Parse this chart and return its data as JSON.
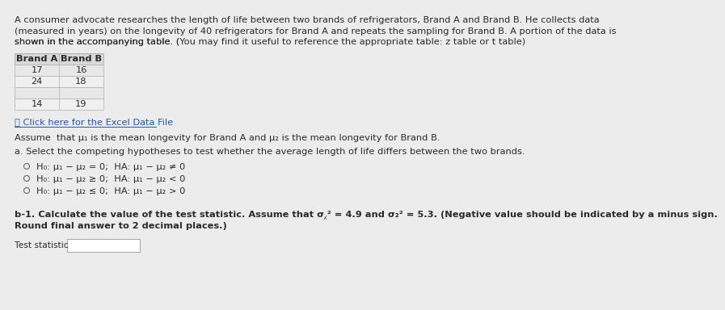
{
  "page_bg": "#ececec",
  "content_bg": "#ececec",
  "title_line1": "A consumer advocate researches the length of life between two brands of refrigerators, Brand A and Brand B. He collects data",
  "title_line2": "(measured in years) on the longevity of 40 refrigerators for Brand A and repeats the sampling for Brand B. A portion of the data is",
  "title_line3": "shown in the accompanying table. (You may find it useful to reference the appropriate table: z table or t table)",
  "title_line3_plain": "shown in the accompanying table. (",
  "title_line3_bold": "You may find it useful to reference the appropriate table: ",
  "title_line3_link1": "z table",
  "title_line3_mid": " or ",
  "title_line3_link2": "t table",
  "title_line3_end": ")",
  "table_headers": [
    "Brand A",
    "Brand B"
  ],
  "table_rows": [
    [
      "17",
      "16"
    ],
    [
      "24",
      "18"
    ],
    [
      "",
      ""
    ],
    [
      "14",
      "19"
    ]
  ],
  "link_text": "Click here for the Excel Data File",
  "assume_text_pre": "Assume  that ",
  "assume_mu1": "μ₁",
  "assume_text_mid": " is the mean longevity for Brand A and ",
  "assume_mu2": "μ₂",
  "assume_text_end": " is the mean longevity for Brand B.",
  "part_a_text": "a. Select the competing hypotheses to test whether the average length of life differs between the two brands.",
  "hypotheses": [
    "H₀: μ₁ − μ₂ = 0;  HA: μ₁ − μ₂ ≠ 0",
    "H₀: μ₁ − μ₂ ≥ 0;  HA: μ₁ − μ₂ < 0",
    "H₀: μ₁ − μ₂ ≤ 0;  HA: μ₁ − μ₂ > 0"
  ],
  "part_b_text1": "b-1. Calculate the value of the test statistic. Assume that σ",
  "part_b_text2": " = 4.9 and σ",
  "part_b_text3": " = 5.3. (Negative value should be indicated by a minus sign.",
  "part_b_line2": "Round final answer to 2 decimal places.)",
  "test_statistic_label": "Test statistic",
  "text_color": "#2a2a2a",
  "link_color": "#2255aa",
  "table_border_color": "#b0b0b0",
  "table_header_bg": "#d8d8d8",
  "table_row_bg1": "#e8e8e8",
  "table_row_bg2": "#f0f0f0",
  "radio_color": "#666666",
  "input_border": "#aaaaaa",
  "font_size": 8.2
}
